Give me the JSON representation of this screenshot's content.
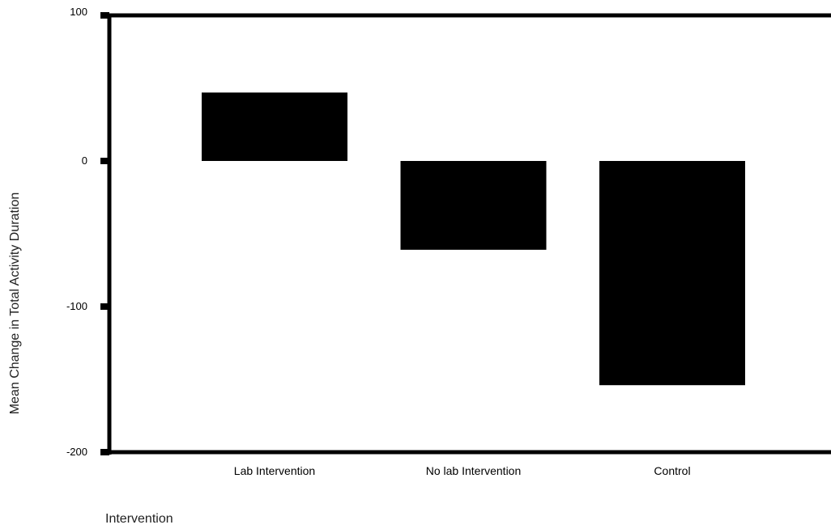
{
  "chart_data": {
    "type": "bar",
    "title": "",
    "xlabel": "Intervention",
    "ylabel": "Mean Change in Total Activity Duration",
    "categories": [
      "Lab Intervention",
      "No lab Intervention",
      "Control"
    ],
    "values": [
      47,
      -61,
      -154
    ],
    "ylim": [
      -200,
      100
    ],
    "yticks": [
      100,
      0,
      -100,
      -200
    ],
    "grid": false,
    "bar_color": "#000000",
    "axis_color": "#000000"
  }
}
